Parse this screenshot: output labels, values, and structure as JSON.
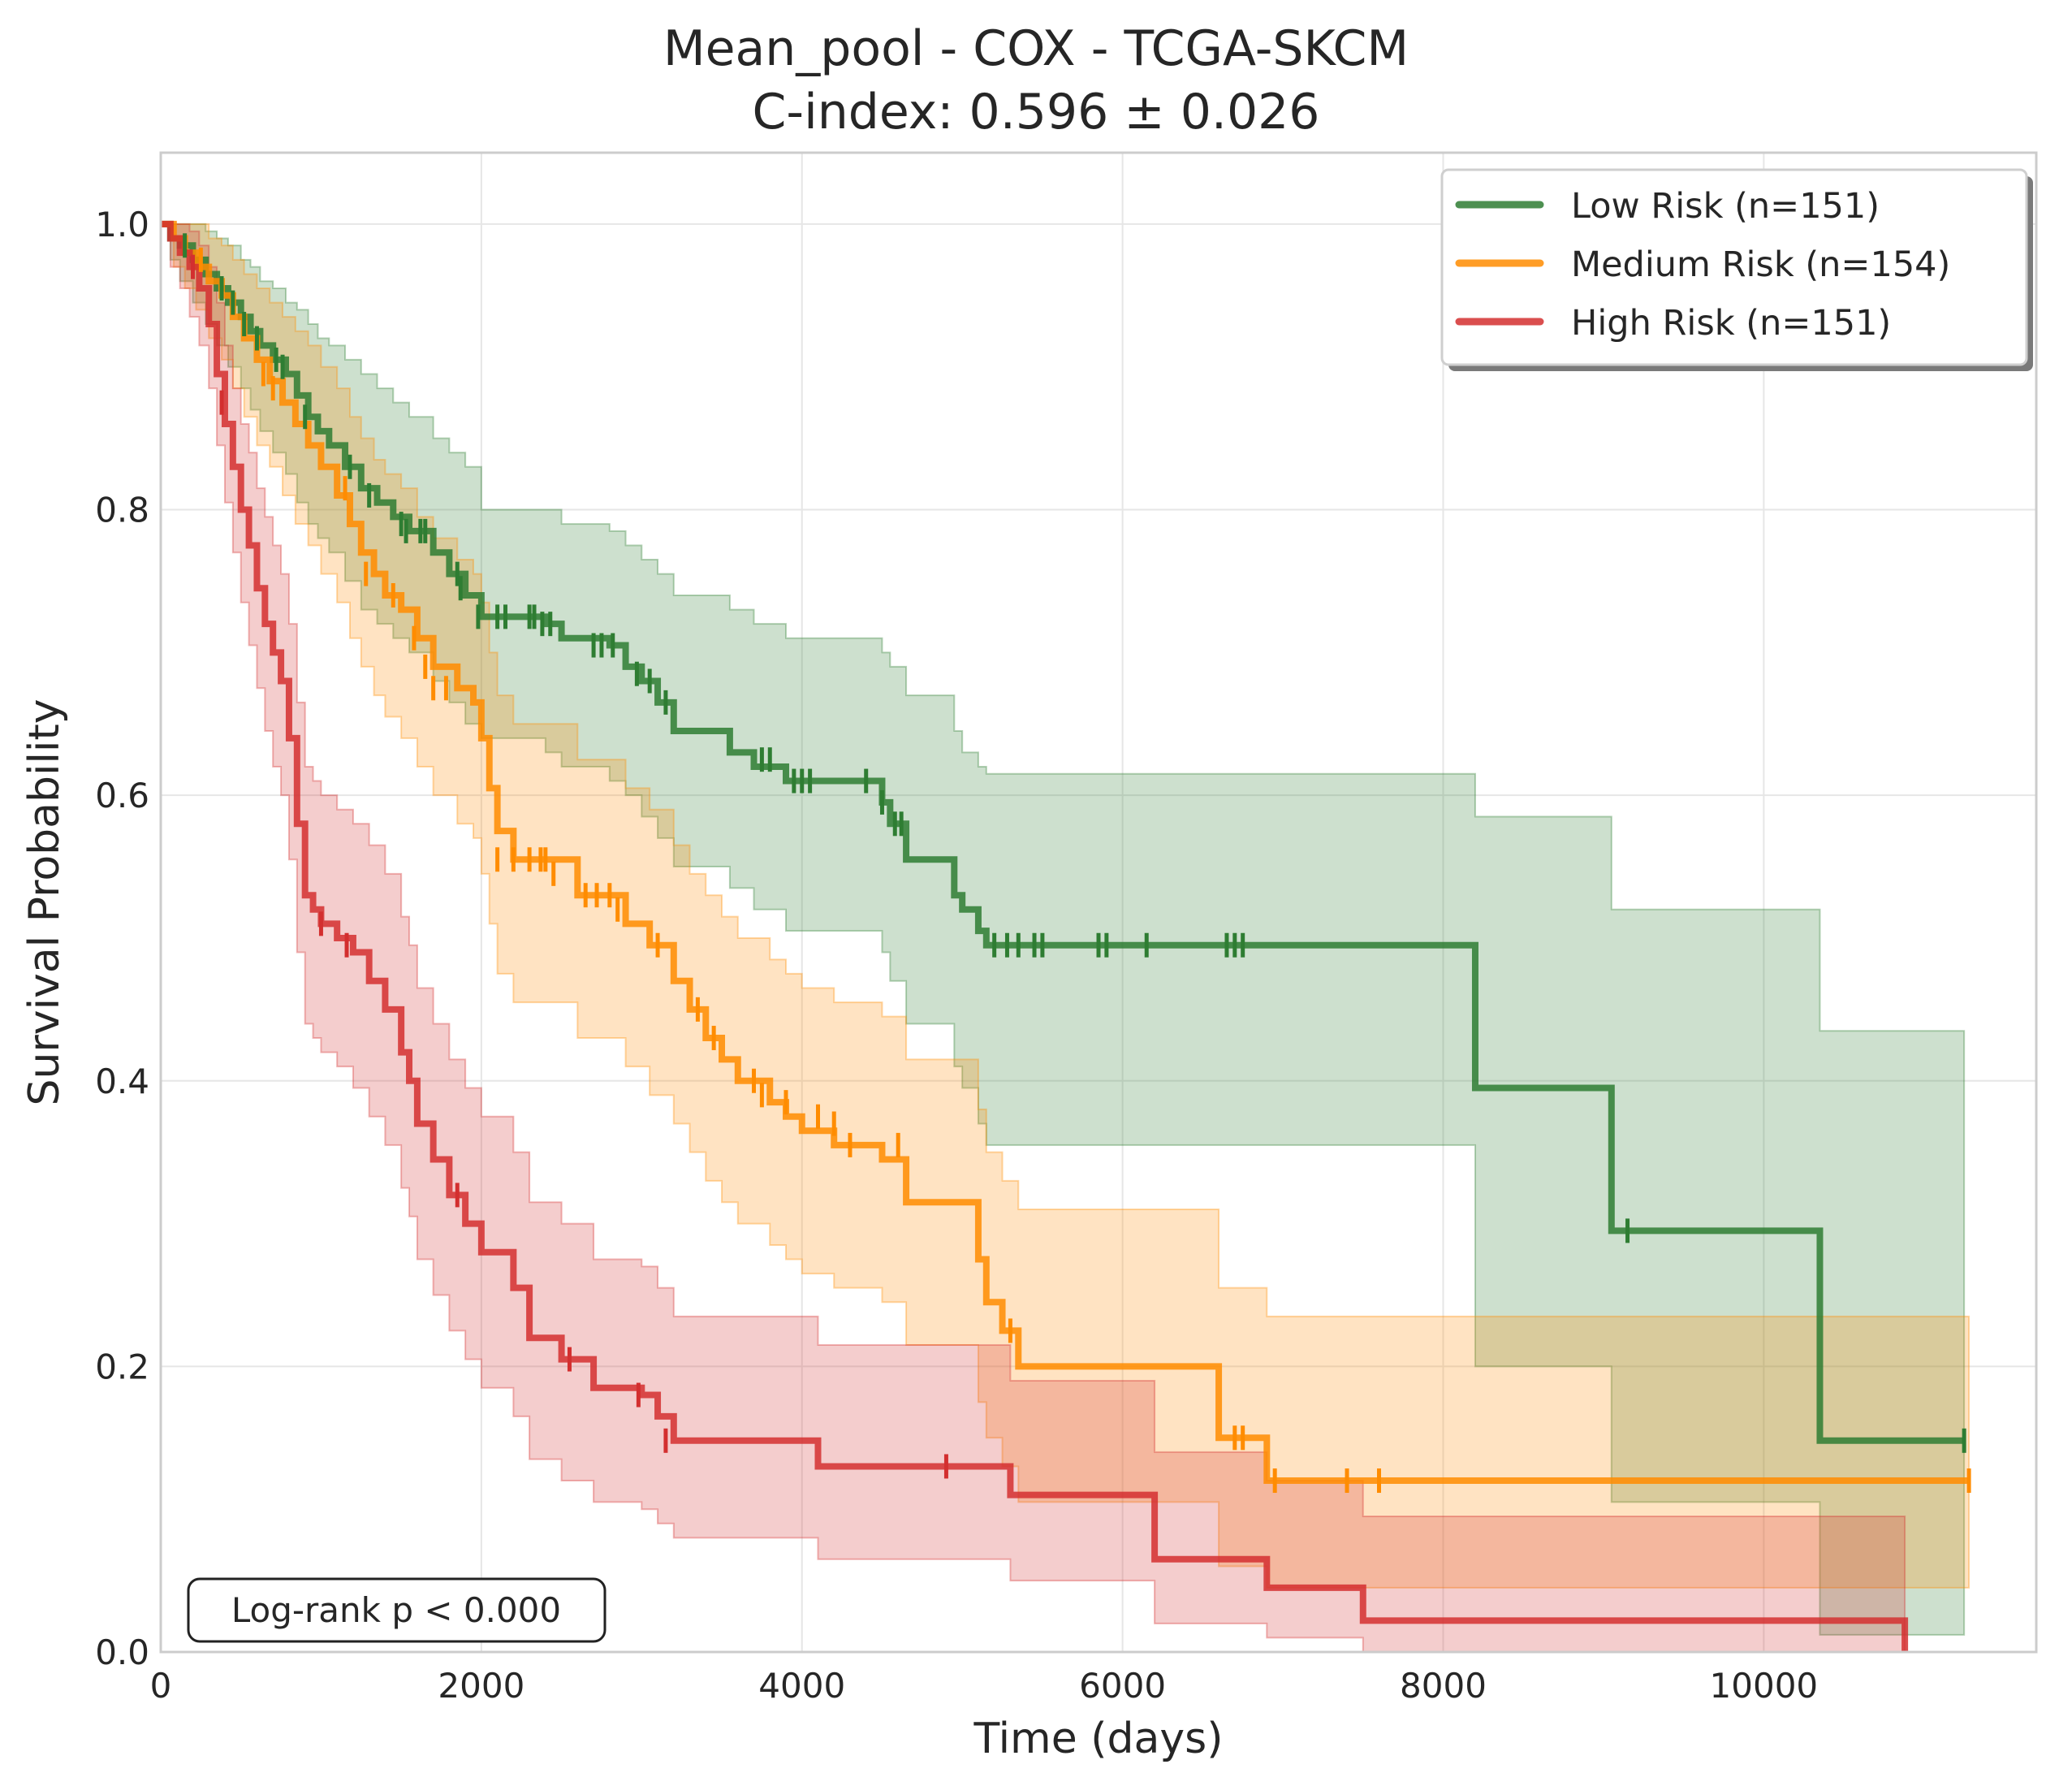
{
  "chart_data": {
    "type": "line",
    "title": "Mean_pool - COX - TCGA-SKCM",
    "subtitle": "C-index: 0.596 ± 0.026",
    "xlabel": "Time (days)",
    "ylabel": "Survival Probability",
    "xlim": [
      0,
      11700
    ],
    "ylim": [
      0,
      1.05
    ],
    "xticks": [
      0,
      2000,
      4000,
      6000,
      8000,
      10000
    ],
    "yticks": [
      0.0,
      0.2,
      0.4,
      0.6,
      0.8,
      1.0
    ],
    "xtick_labels": [
      "0",
      "2000",
      "4000",
      "6000",
      "8000",
      "10000"
    ],
    "ytick_labels": [
      "0.0",
      "0.2",
      "0.4",
      "0.6",
      "0.8",
      "1.0"
    ],
    "grid": true,
    "legend_position": "top-right",
    "annotation": "Log-rank p < 0.000",
    "series": [
      {
        "name": "Low Risk (n=151)",
        "color": "#2e7d32",
        "x": [
          0,
          60,
          120,
          200,
          280,
          350,
          420,
          500,
          560,
          620,
          700,
          780,
          850,
          920,
          980,
          1050,
          1150,
          1250,
          1350,
          1450,
          1550,
          1700,
          1800,
          1900,
          2000,
          2400,
          2500,
          2800,
          2900,
          3000,
          3100,
          3200,
          3550,
          3700,
          3900,
          4500,
          4550,
          4650,
          4950,
          5000,
          5100,
          5150,
          8200,
          9050,
          10350,
          11250
        ],
        "y": [
          1.0,
          0.99,
          0.985,
          0.975,
          0.965,
          0.955,
          0.945,
          0.935,
          0.925,
          0.915,
          0.905,
          0.895,
          0.88,
          0.865,
          0.855,
          0.845,
          0.83,
          0.815,
          0.805,
          0.795,
          0.785,
          0.77,
          0.755,
          0.74,
          0.725,
          0.72,
          0.71,
          0.705,
          0.69,
          0.68,
          0.665,
          0.645,
          0.63,
          0.62,
          0.61,
          0.595,
          0.58,
          0.555,
          0.53,
          0.52,
          0.505,
          0.495,
          0.395,
          0.295,
          0.148,
          0.148
        ],
        "ci_lower": [
          1.0,
          0.975,
          0.96,
          0.945,
          0.93,
          0.915,
          0.9,
          0.885,
          0.87,
          0.855,
          0.84,
          0.825,
          0.805,
          0.79,
          0.78,
          0.77,
          0.75,
          0.73,
          0.72,
          0.71,
          0.7,
          0.68,
          0.665,
          0.65,
          0.64,
          0.63,
          0.62,
          0.61,
          0.6,
          0.585,
          0.57,
          0.55,
          0.535,
          0.52,
          0.505,
          0.49,
          0.47,
          0.44,
          0.41,
          0.395,
          0.37,
          0.355,
          0.2,
          0.105,
          0.012,
          0.012
        ],
        "ci_upper": [
          1.0,
          1.0,
          1.0,
          1.0,
          0.995,
          0.99,
          0.985,
          0.975,
          0.97,
          0.96,
          0.955,
          0.945,
          0.94,
          0.93,
          0.92,
          0.915,
          0.905,
          0.895,
          0.885,
          0.875,
          0.865,
          0.85,
          0.84,
          0.83,
          0.8,
          0.8,
          0.79,
          0.785,
          0.775,
          0.765,
          0.755,
          0.74,
          0.73,
          0.72,
          0.71,
          0.7,
          0.69,
          0.67,
          0.645,
          0.63,
          0.62,
          0.615,
          0.585,
          0.52,
          0.435,
          0.435
        ],
        "censor_x": [
          150,
          380,
          450,
          520,
          600,
          720,
          760,
          900,
          1180,
          1300,
          1500,
          1530,
          1620,
          1650,
          1850,
          1870,
          1980,
          2100,
          2150,
          2300,
          2330,
          2380,
          2430,
          2700,
          2750,
          2820,
          2970,
          3050,
          3150,
          3750,
          3800,
          3950,
          4000,
          4050,
          4400,
          4500,
          4580,
          4620,
          5200,
          5280,
          5350,
          5450,
          5500,
          5850,
          5900,
          6150,
          6650,
          6700,
          6750,
          9150,
          11250
        ],
        "censor_y": [
          0.985,
          0.955,
          0.945,
          0.93,
          0.92,
          0.905,
          0.9,
          0.865,
          0.83,
          0.81,
          0.79,
          0.785,
          0.785,
          0.785,
          0.755,
          0.745,
          0.725,
          0.725,
          0.725,
          0.725,
          0.725,
          0.72,
          0.72,
          0.705,
          0.705,
          0.705,
          0.685,
          0.68,
          0.665,
          0.625,
          0.625,
          0.61,
          0.61,
          0.61,
          0.61,
          0.595,
          0.58,
          0.58,
          0.495,
          0.495,
          0.495,
          0.495,
          0.495,
          0.495,
          0.495,
          0.495,
          0.495,
          0.495,
          0.495,
          0.295,
          0.148
        ]
      },
      {
        "name": "Medium Risk (n=154)",
        "color": "#ff8c00",
        "x": [
          0,
          80,
          150,
          220,
          300,
          380,
          450,
          520,
          600,
          680,
          760,
          840,
          920,
          1000,
          1100,
          1180,
          1250,
          1330,
          1400,
          1500,
          1600,
          1700,
          1850,
          1950,
          2000,
          2050,
          2100,
          2200,
          2600,
          2900,
          3050,
          3200,
          3300,
          3400,
          3500,
          3600,
          3800,
          3900,
          4000,
          4200,
          4500,
          4650,
          5100,
          5150,
          5250,
          5350,
          6600,
          6900,
          11280
        ],
        "y": [
          1.0,
          0.99,
          0.98,
          0.97,
          0.96,
          0.95,
          0.935,
          0.92,
          0.905,
          0.89,
          0.875,
          0.86,
          0.845,
          0.83,
          0.81,
          0.79,
          0.77,
          0.755,
          0.74,
          0.73,
          0.71,
          0.69,
          0.675,
          0.665,
          0.64,
          0.605,
          0.575,
          0.555,
          0.53,
          0.51,
          0.495,
          0.47,
          0.45,
          0.43,
          0.415,
          0.4,
          0.385,
          0.375,
          0.365,
          0.355,
          0.345,
          0.315,
          0.275,
          0.245,
          0.225,
          0.2,
          0.15,
          0.12,
          0.12
        ],
        "ci_lower": [
          1.0,
          0.97,
          0.955,
          0.94,
          0.92,
          0.905,
          0.885,
          0.865,
          0.845,
          0.83,
          0.81,
          0.79,
          0.775,
          0.755,
          0.735,
          0.71,
          0.69,
          0.67,
          0.655,
          0.64,
          0.62,
          0.6,
          0.58,
          0.57,
          0.545,
          0.51,
          0.475,
          0.455,
          0.43,
          0.41,
          0.39,
          0.37,
          0.35,
          0.33,
          0.315,
          0.3,
          0.285,
          0.275,
          0.265,
          0.255,
          0.245,
          0.215,
          0.175,
          0.15,
          0.13,
          0.105,
          0.06,
          0.045,
          0.045
        ],
        "ci_upper": [
          1.0,
          1.0,
          1.0,
          1.0,
          0.99,
          0.985,
          0.975,
          0.965,
          0.955,
          0.945,
          0.935,
          0.925,
          0.915,
          0.9,
          0.885,
          0.865,
          0.85,
          0.835,
          0.825,
          0.815,
          0.795,
          0.78,
          0.765,
          0.755,
          0.735,
          0.7,
          0.67,
          0.65,
          0.625,
          0.605,
          0.59,
          0.565,
          0.545,
          0.53,
          0.515,
          0.5,
          0.485,
          0.475,
          0.465,
          0.455,
          0.445,
          0.415,
          0.38,
          0.35,
          0.33,
          0.31,
          0.255,
          0.235,
          0.235
        ],
        "censor_x": [
          250,
          640,
          700,
          1150,
          1280,
          1450,
          1580,
          1650,
          1700,
          1780,
          2100,
          2200,
          2300,
          2370,
          2400,
          2450,
          2650,
          2720,
          2800,
          2850,
          3100,
          3350,
          3450,
          3700,
          3750,
          3900,
          4100,
          4200,
          4300,
          4600,
          5300,
          6700,
          6750,
          6950,
          7400,
          7600,
          11280
        ],
        "censor_y": [
          0.975,
          0.895,
          0.885,
          0.815,
          0.755,
          0.74,
          0.71,
          0.69,
          0.675,
          0.675,
          0.555,
          0.555,
          0.555,
          0.555,
          0.555,
          0.545,
          0.53,
          0.53,
          0.53,
          0.52,
          0.495,
          0.45,
          0.43,
          0.4,
          0.39,
          0.385,
          0.375,
          0.37,
          0.355,
          0.355,
          0.225,
          0.15,
          0.15,
          0.12,
          0.12,
          0.12,
          0.12
        ]
      },
      {
        "name": "High Risk (n=151)",
        "color": "#d32f2f",
        "x": [
          0,
          60,
          120,
          180,
          240,
          300,
          350,
          400,
          450,
          500,
          550,
          600,
          650,
          700,
          750,
          800,
          850,
          900,
          950,
          1000,
          1100,
          1200,
          1300,
          1400,
          1500,
          1550,
          1600,
          1700,
          1800,
          1900,
          2000,
          2200,
          2300,
          2500,
          2700,
          3000,
          3100,
          3200,
          4100,
          5300,
          6200,
          6900,
          7500,
          10880
        ],
        "y": [
          1.0,
          0.99,
          0.98,
          0.97,
          0.955,
          0.93,
          0.895,
          0.86,
          0.83,
          0.8,
          0.775,
          0.745,
          0.72,
          0.7,
          0.68,
          0.64,
          0.58,
          0.53,
          0.52,
          0.51,
          0.5,
          0.49,
          0.47,
          0.45,
          0.42,
          0.4,
          0.37,
          0.345,
          0.32,
          0.3,
          0.28,
          0.255,
          0.22,
          0.205,
          0.185,
          0.18,
          0.165,
          0.148,
          0.13,
          0.11,
          0.065,
          0.045,
          0.022,
          0.0
        ],
        "ci_lower": [
          1.0,
          0.97,
          0.955,
          0.935,
          0.915,
          0.885,
          0.845,
          0.805,
          0.77,
          0.735,
          0.705,
          0.675,
          0.645,
          0.62,
          0.6,
          0.555,
          0.49,
          0.44,
          0.43,
          0.42,
          0.41,
          0.395,
          0.375,
          0.355,
          0.325,
          0.305,
          0.275,
          0.25,
          0.225,
          0.205,
          0.185,
          0.165,
          0.135,
          0.12,
          0.105,
          0.1,
          0.09,
          0.08,
          0.065,
          0.05,
          0.02,
          0.01,
          0.0,
          0.0
        ],
        "ci_upper": [
          1.0,
          1.0,
          1.0,
          0.995,
          0.985,
          0.97,
          0.945,
          0.915,
          0.885,
          0.86,
          0.84,
          0.815,
          0.795,
          0.775,
          0.755,
          0.72,
          0.665,
          0.62,
          0.61,
          0.6,
          0.59,
          0.58,
          0.565,
          0.545,
          0.515,
          0.495,
          0.465,
          0.44,
          0.415,
          0.395,
          0.375,
          0.35,
          0.315,
          0.3,
          0.275,
          0.27,
          0.255,
          0.235,
          0.215,
          0.19,
          0.14,
          0.12,
          0.095,
          0.095
        ],
        "censor_x": [
          200,
          380,
          1000,
          1160,
          1850,
          2550,
          2980,
          3150,
          4900
        ],
        "censor_y": [
          0.97,
          0.875,
          0.51,
          0.495,
          0.32,
          0.205,
          0.18,
          0.148,
          0.13
        ]
      }
    ]
  }
}
